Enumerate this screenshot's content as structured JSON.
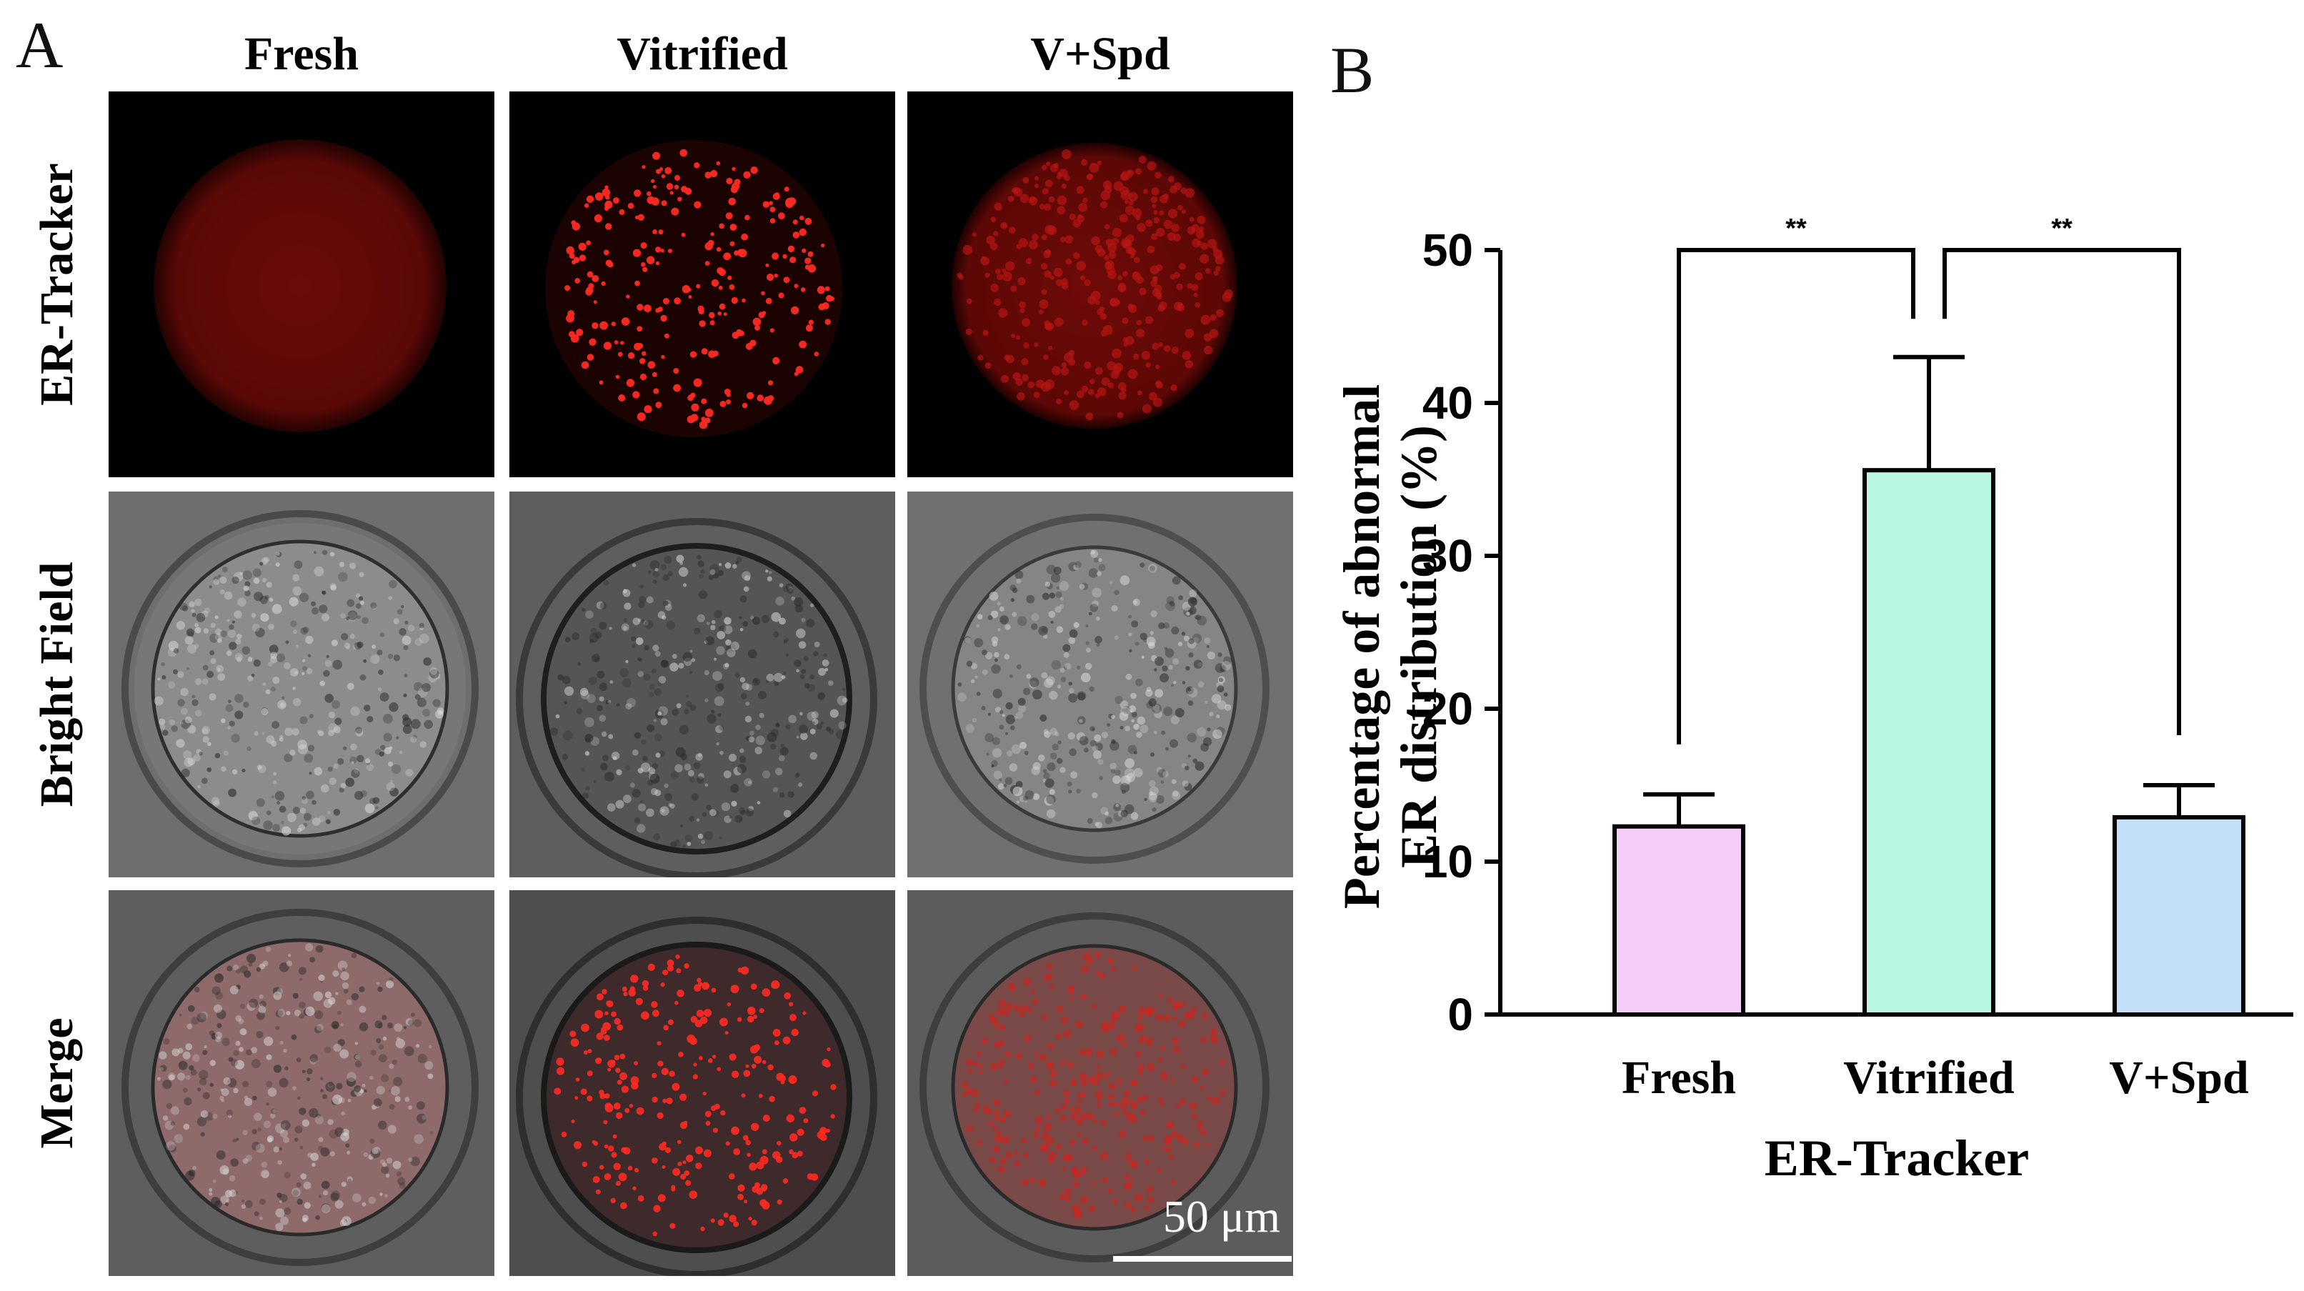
{
  "panel_a": {
    "letter": "A",
    "columns": [
      "Fresh",
      "Vitrified",
      "V+Spd"
    ],
    "rows": [
      "ER-Tracker",
      "Bright Field",
      "Merge"
    ],
    "scale_bar_label": "50 μm"
  },
  "panel_b": {
    "letter": "B"
  },
  "colors": {
    "fresh": "#f6cdf6",
    "vitrified": "#b9f6e4",
    "vspd": "#c2e0f7",
    "er_red": "#d0201c"
  },
  "chart_data": {
    "type": "bar",
    "categories": [
      "Fresh",
      "Vitrified",
      "V+Spd"
    ],
    "values": [
      12.3,
      35.6,
      12.9
    ],
    "error_upper": [
      14.4,
      43.0,
      15.0
    ],
    "ylim": [
      0,
      50
    ],
    "yticks": [
      "0",
      "10",
      "20",
      "30",
      "40",
      "50"
    ],
    "xlabel": "ER-Tracker",
    "ylabel_line1": "Percentage of abnormal",
    "ylabel_line2": "ER distribution (%)",
    "significance": [
      {
        "from": 0,
        "to": 1,
        "label": "**"
      },
      {
        "from": 1,
        "to": 2,
        "label": "**"
      }
    ],
    "grid": false
  }
}
